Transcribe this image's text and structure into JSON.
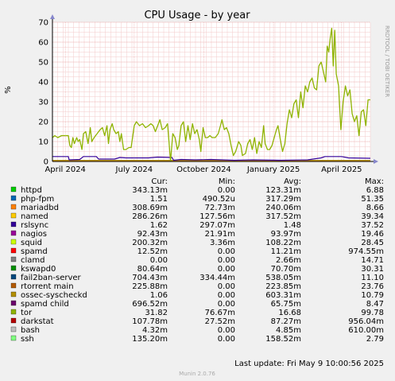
{
  "chart_data": {
    "type": "line",
    "title": "CPU Usage - by year",
    "ylabel": "%",
    "ylim": [
      0,
      70
    ],
    "yticks": [
      0,
      10,
      20,
      30,
      40,
      50,
      60,
      70
    ],
    "xticks": [
      {
        "label": "April 2024",
        "date": "2024-04-01"
      },
      {
        "label": "July 2024",
        "date": "2024-07-01"
      },
      {
        "label": "October 2024",
        "date": "2024-10-01"
      },
      {
        "label": "January 2025",
        "date": "2025-01-01"
      },
      {
        "label": "April 2025",
        "date": "2025-04-01"
      }
    ],
    "x_range": [
      "2024-03-15",
      "2025-05-09"
    ],
    "grid": true,
    "legend_columns": [
      "Cur:",
      "Min:",
      "Avg:",
      "Max:"
    ],
    "series": [
      {
        "name": "httpd",
        "color": "#00cc00",
        "cur": "343.13m",
        "min": "0.00",
        "avg": "123.31m",
        "max": "6.88"
      },
      {
        "name": "php-fpm",
        "color": "#0066b3",
        "cur": "1.51",
        "min": "490.52u",
        "avg": "317.29m",
        "max": "51.35"
      },
      {
        "name": "mariadbd",
        "color": "#ff8000",
        "cur": "308.69m",
        "min": "72.73m",
        "avg": "240.06m",
        "max": "8.66"
      },
      {
        "name": "named",
        "color": "#ffcc00",
        "cur": "286.26m",
        "min": "127.56m",
        "avg": "317.52m",
        "max": "39.34"
      },
      {
        "name": "rslsync",
        "color": "#330099",
        "cur": "1.62",
        "min": "297.07m",
        "avg": "1.48",
        "max": "37.52"
      },
      {
        "name": "nagios",
        "color": "#990099",
        "cur": "92.43m",
        "min": "21.91m",
        "avg": "93.97m",
        "max": "19.46"
      },
      {
        "name": "squid",
        "color": "#ccff00",
        "cur": "200.32m",
        "min": "3.36m",
        "avg": "108.22m",
        "max": "28.45"
      },
      {
        "name": "spamd",
        "color": "#ff0000",
        "cur": "12.52m",
        "min": "0.00",
        "avg": "11.21m",
        "max": "974.55m"
      },
      {
        "name": "clamd",
        "color": "#808080",
        "cur": "0.00",
        "min": "0.00",
        "avg": "2.66m",
        "max": "14.71"
      },
      {
        "name": "kswapd0",
        "color": "#008f00",
        "cur": "80.64m",
        "min": "0.00",
        "avg": "70.70m",
        "max": "30.31"
      },
      {
        "name": "fail2ban-server",
        "color": "#00487d",
        "cur": "704.43m",
        "min": "334.44m",
        "avg": "538.05m",
        "max": "11.10"
      },
      {
        "name": "rtorrent main",
        "color": "#b35a00",
        "cur": "225.88m",
        "min": "0.00",
        "avg": "223.85m",
        "max": "23.76"
      },
      {
        "name": "ossec-syscheckd",
        "color": "#b38f00",
        "cur": "1.06",
        "min": "0.00",
        "avg": "603.31m",
        "max": "10.79"
      },
      {
        "name": "spamd child",
        "color": "#6b006b",
        "cur": "696.52m",
        "min": "0.00",
        "avg": "65.75m",
        "max": "8.47"
      },
      {
        "name": "tor",
        "color": "#8fb300",
        "cur": "31.82",
        "min": "76.67m",
        "avg": "16.68",
        "max": "99.78"
      },
      {
        "name": "darkstat",
        "color": "#b30000",
        "cur": "107.78m",
        "min": "27.52m",
        "avg": "87.27m",
        "max": "956.04m"
      },
      {
        "name": "bash",
        "color": "#bebebe",
        "cur": "4.32m",
        "min": "0.00",
        "avg": "4.85m",
        "max": "610.00m"
      },
      {
        "name": "ssh",
        "color": "#80ff80",
        "cur": "135.20m",
        "min": "0.00",
        "avg": "158.52m",
        "max": "2.79"
      }
    ],
    "tor_trace": [
      [
        "2024-03-15",
        12
      ],
      [
        "2024-03-18",
        13
      ],
      [
        "2024-03-22",
        12
      ],
      [
        "2024-03-27",
        13
      ],
      [
        "2024-04-05",
        13
      ],
      [
        "2024-04-07",
        8
      ],
      [
        "2024-04-09",
        7
      ],
      [
        "2024-04-11",
        12
      ],
      [
        "2024-04-13",
        9
      ],
      [
        "2024-04-16",
        12
      ],
      [
        "2024-04-18",
        10
      ],
      [
        "2024-04-20",
        11
      ],
      [
        "2024-04-23",
        6
      ],
      [
        "2024-04-25",
        14
      ],
      [
        "2024-04-28",
        15
      ],
      [
        "2024-05-01",
        9
      ],
      [
        "2024-05-04",
        17
      ],
      [
        "2024-05-06",
        10
      ],
      [
        "2024-05-09",
        12
      ],
      [
        "2024-05-13",
        14
      ],
      [
        "2024-05-17",
        16
      ],
      [
        "2024-05-20",
        17
      ],
      [
        "2024-05-23",
        13
      ],
      [
        "2024-05-26",
        18
      ],
      [
        "2024-05-28",
        9
      ],
      [
        "2024-05-30",
        16
      ],
      [
        "2024-06-02",
        19
      ],
      [
        "2024-06-04",
        16
      ],
      [
        "2024-06-07",
        14
      ],
      [
        "2024-06-10",
        15
      ],
      [
        "2024-06-12",
        10
      ],
      [
        "2024-06-14",
        14
      ],
      [
        "2024-06-17",
        6
      ],
      [
        "2024-06-20",
        6
      ],
      [
        "2024-06-24",
        7
      ],
      [
        "2024-06-27",
        7
      ],
      [
        "2024-07-01",
        18
      ],
      [
        "2024-07-04",
        20
      ],
      [
        "2024-07-08",
        18
      ],
      [
        "2024-07-12",
        19
      ],
      [
        "2024-07-16",
        17
      ],
      [
        "2024-07-20",
        18
      ],
      [
        "2024-07-23",
        19
      ],
      [
        "2024-07-26",
        18
      ],
      [
        "2024-07-29",
        15
      ],
      [
        "2024-08-01",
        18
      ],
      [
        "2024-08-04",
        21
      ],
      [
        "2024-08-07",
        16
      ],
      [
        "2024-08-11",
        17
      ],
      [
        "2024-08-14",
        19
      ],
      [
        "2024-08-18",
        0
      ],
      [
        "2024-08-21",
        14
      ],
      [
        "2024-08-24",
        12
      ],
      [
        "2024-08-27",
        6
      ],
      [
        "2024-08-29",
        8
      ],
      [
        "2024-09-01",
        18
      ],
      [
        "2024-09-04",
        20
      ],
      [
        "2024-09-07",
        10
      ],
      [
        "2024-09-10",
        18
      ],
      [
        "2024-09-13",
        11
      ],
      [
        "2024-09-16",
        19
      ],
      [
        "2024-09-19",
        14
      ],
      [
        "2024-09-22",
        16
      ],
      [
        "2024-09-25",
        11
      ],
      [
        "2024-09-27",
        5
      ],
      [
        "2024-09-30",
        17
      ],
      [
        "2024-10-03",
        12
      ],
      [
        "2024-10-06",
        12
      ],
      [
        "2024-10-09",
        13
      ],
      [
        "2024-10-12",
        12
      ],
      [
        "2024-10-16",
        12
      ],
      [
        "2024-10-20",
        14
      ],
      [
        "2024-10-23",
        18
      ],
      [
        "2024-10-25",
        21
      ],
      [
        "2024-10-28",
        16
      ],
      [
        "2024-10-31",
        17
      ],
      [
        "2024-11-03",
        14
      ],
      [
        "2024-11-06",
        8
      ],
      [
        "2024-11-09",
        3
      ],
      [
        "2024-11-12",
        5
      ],
      [
        "2024-11-16",
        10
      ],
      [
        "2024-11-19",
        8
      ],
      [
        "2024-11-21",
        3
      ],
      [
        "2024-11-25",
        4
      ],
      [
        "2024-11-28",
        9
      ],
      [
        "2024-12-01",
        11
      ],
      [
        "2024-12-04",
        6
      ],
      [
        "2024-12-07",
        12
      ],
      [
        "2024-12-10",
        4
      ],
      [
        "2024-12-13",
        10
      ],
      [
        "2024-12-16",
        7
      ],
      [
        "2024-12-19",
        18
      ],
      [
        "2024-12-21",
        9
      ],
      [
        "2024-12-24",
        6
      ],
      [
        "2024-12-27",
        6
      ],
      [
        "2024-12-30",
        8
      ],
      [
        "2025-01-02",
        12
      ],
      [
        "2025-01-05",
        16
      ],
      [
        "2025-01-07",
        18
      ],
      [
        "2025-01-10",
        11
      ],
      [
        "2025-01-13",
        5
      ],
      [
        "2025-01-16",
        9
      ],
      [
        "2025-01-19",
        19
      ],
      [
        "2025-01-22",
        26
      ],
      [
        "2025-01-25",
        22
      ],
      [
        "2025-01-28",
        29
      ],
      [
        "2025-01-31",
        31
      ],
      [
        "2025-02-03",
        22
      ],
      [
        "2025-02-06",
        35
      ],
      [
        "2025-02-09",
        27
      ],
      [
        "2025-02-12",
        38
      ],
      [
        "2025-02-15",
        35
      ],
      [
        "2025-02-18",
        40
      ],
      [
        "2025-02-21",
        42
      ],
      [
        "2025-02-24",
        37
      ],
      [
        "2025-02-27",
        36
      ],
      [
        "2025-03-02",
        48
      ],
      [
        "2025-03-05",
        50
      ],
      [
        "2025-03-08",
        45
      ],
      [
        "2025-03-11",
        40
      ],
      [
        "2025-03-13",
        58
      ],
      [
        "2025-03-15",
        55
      ],
      [
        "2025-03-17",
        62
      ],
      [
        "2025-03-19",
        67
      ],
      [
        "2025-03-21",
        48
      ],
      [
        "2025-03-23",
        66
      ],
      [
        "2025-03-25",
        44
      ],
      [
        "2025-03-28",
        38
      ],
      [
        "2025-03-31",
        16
      ],
      [
        "2025-04-03",
        30
      ],
      [
        "2025-04-06",
        38
      ],
      [
        "2025-04-09",
        33
      ],
      [
        "2025-04-12",
        36
      ],
      [
        "2025-04-15",
        24
      ],
      [
        "2025-04-18",
        20
      ],
      [
        "2025-04-21",
        23
      ],
      [
        "2025-04-24",
        13
      ],
      [
        "2025-04-27",
        25
      ],
      [
        "2025-04-30",
        26
      ],
      [
        "2025-05-03",
        18
      ],
      [
        "2025-05-06",
        31
      ],
      [
        "2025-05-09",
        31
      ]
    ],
    "rslsync_trace": [
      [
        "2024-03-15",
        2.5
      ],
      [
        "2024-04-05",
        2.5
      ],
      [
        "2024-04-06",
        0.8
      ],
      [
        "2024-04-20",
        1.0
      ],
      [
        "2024-04-25",
        2.5
      ],
      [
        "2024-05-12",
        2.5
      ],
      [
        "2024-05-15",
        1.2
      ],
      [
        "2024-06-05",
        1.2
      ],
      [
        "2024-06-12",
        2.0
      ],
      [
        "2024-06-20",
        1.8
      ],
      [
        "2024-07-20",
        1.8
      ],
      [
        "2024-08-01",
        2.2
      ],
      [
        "2024-08-20",
        2.0
      ],
      [
        "2024-08-22",
        0.6
      ],
      [
        "2024-09-01",
        1.0
      ],
      [
        "2024-09-20",
        0.8
      ],
      [
        "2024-10-10",
        1.0
      ],
      [
        "2024-11-10",
        0.6
      ],
      [
        "2024-12-05",
        0.8
      ],
      [
        "2025-01-10",
        0.6
      ],
      [
        "2025-02-15",
        0.8
      ],
      [
        "2025-03-05",
        1.8
      ],
      [
        "2025-03-10",
        2.5
      ],
      [
        "2025-04-01",
        2.5
      ],
      [
        "2025-04-10",
        1.8
      ],
      [
        "2025-05-09",
        1.6
      ]
    ],
    "footer": "Last update: Fri May  9 10:00:56 2025",
    "watermark": "RRDTOOL / TOBI OETIKER",
    "credits": "Munin 2.0.76"
  }
}
